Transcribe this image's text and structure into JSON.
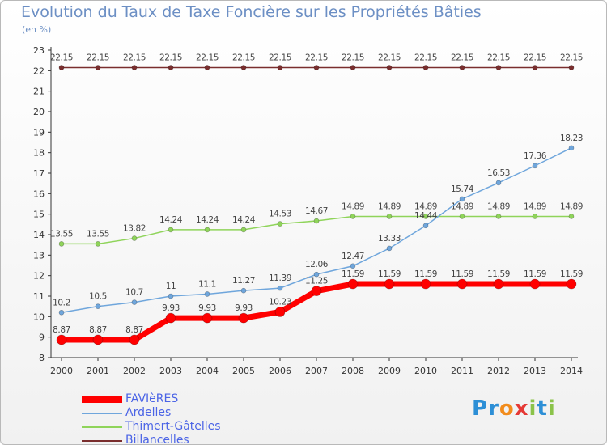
{
  "title": "Evolution du Taux de Taxe Foncière sur les Propriétés Bâties",
  "unit_label": "(en %)",
  "logo": {
    "text": "Proxiti",
    "letters": [
      "P",
      "r",
      "o",
      "x",
      "i",
      "t",
      "i"
    ],
    "colors": [
      "#2d8fd6",
      "#2d8fd6",
      "#f28c1c",
      "#e53935",
      "#8bc34a",
      "#2d8fd6",
      "#8bc34a"
    ]
  },
  "chart_data": {
    "type": "line",
    "categories": [
      "2000",
      "2001",
      "2002",
      "2003",
      "2004",
      "2005",
      "2006",
      "2007",
      "2008",
      "2009",
      "2010",
      "2011",
      "2012",
      "2013",
      "2014"
    ],
    "ylim": [
      8,
      23
    ],
    "yticks": [
      8,
      9,
      10,
      11,
      12,
      13,
      14,
      15,
      16,
      17,
      18,
      19,
      20,
      21,
      22,
      23
    ],
    "grid": false,
    "legend_position": "bottom-left",
    "series": [
      {
        "name": "Billancelles",
        "color": "#7a2e2e",
        "values": [
          22.15,
          22.15,
          22.15,
          22.15,
          22.15,
          22.15,
          22.15,
          22.15,
          22.15,
          22.15,
          22.15,
          22.15,
          22.15,
          22.15,
          22.15
        ],
        "labels": [
          "22.15",
          "22.15",
          "22.15",
          "22.15",
          "22.15",
          "22.15",
          "22.15",
          "22.15",
          "22.15",
          "22.15",
          "22.15",
          "22.15",
          "22.15",
          "22.15",
          "22.15"
        ]
      },
      {
        "name": "Thimert-Gâtelles",
        "color": "#8fd45a",
        "values": [
          13.55,
          13.55,
          13.82,
          14.24,
          14.24,
          14.24,
          14.53,
          14.67,
          14.89,
          14.89,
          14.89,
          14.89,
          14.89,
          14.89,
          14.89
        ],
        "labels": [
          "13.55",
          "13.55",
          "13.82",
          "14.24",
          "14.24",
          "14.24",
          "14.53",
          "14.67",
          "14.89",
          "14.89",
          "14.89",
          "14.89",
          "14.89",
          "14.89",
          "14.89"
        ]
      },
      {
        "name": "Ardelles",
        "color": "#6fa6dc",
        "values": [
          10.2,
          10.5,
          10.7,
          11,
          11.1,
          11.27,
          11.39,
          12.06,
          12.47,
          13.33,
          14.44,
          15.74,
          16.53,
          17.36,
          18.23
        ],
        "labels": [
          "10.2",
          "10.5",
          "10.7",
          "11",
          "11.1",
          "11.27",
          "11.39",
          "12.06",
          "12.47",
          "13.33",
          "14.44",
          "15.74",
          "16.53",
          "17.36",
          "18.23"
        ]
      },
      {
        "name": "FAVIèRES",
        "color": "#ff0000",
        "values": [
          8.87,
          8.87,
          8.87,
          9.93,
          9.93,
          9.93,
          10.23,
          11.25,
          11.59,
          11.59,
          11.59,
          11.59,
          11.59,
          11.59,
          11.59
        ],
        "labels": [
          "8.87",
          "8.87",
          "8.87",
          "9.93",
          "9.93",
          "9.93",
          "10.23",
          "11.25",
          "11.59",
          "11.59",
          "11.59",
          "11.59",
          "11.59",
          "11.59",
          "11.59"
        ]
      }
    ]
  },
  "legend": [
    {
      "label": "FAVIèRES",
      "color": "#ff0000"
    },
    {
      "label": "Ardelles",
      "color": "#6fa6dc"
    },
    {
      "label": "Thimert-Gâtelles",
      "color": "#8fd45a"
    },
    {
      "label": "Billancelles",
      "color": "#7a2e2e"
    }
  ]
}
